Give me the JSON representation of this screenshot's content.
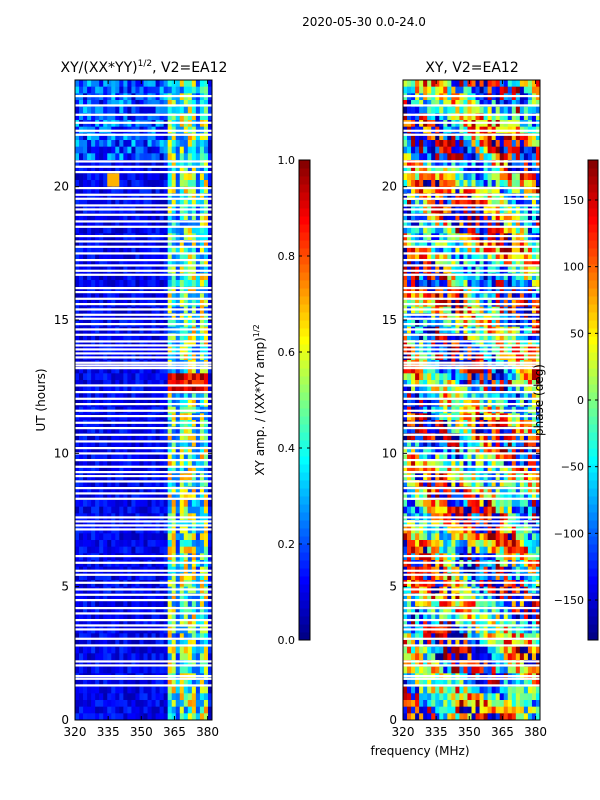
{
  "suptitle": "2020-05-30 0.0-24.0",
  "chart_data": [
    {
      "type": "heatmap",
      "title": "XY/(XX*YY)",
      "title_exp": "1/2",
      "title_suffix": ", V2=EA12",
      "xlabel": "",
      "ylabel": "UT (hours)",
      "xlim": [
        320,
        382
      ],
      "ylim": [
        0,
        24
      ],
      "xticks": [
        "320",
        "335",
        "350",
        "365",
        "380"
      ],
      "xtick_values": [
        320,
        335,
        350,
        365,
        380
      ],
      "yticks": [
        "0",
        "5",
        "10",
        "15",
        "20"
      ],
      "ytick_values": [
        0,
        5,
        10,
        15,
        20
      ],
      "colormap": "jet",
      "pattern": "amplitude",
      "colorbar": {
        "label": "XY amp. / (XX*YY amp)",
        "label_exp": "1/2",
        "min": 0.0,
        "max": 1.0,
        "ticks": [
          "0.0",
          "0.2",
          "0.4",
          "0.6",
          "0.8",
          "1.0"
        ],
        "tick_values": [
          0.0,
          0.2,
          0.4,
          0.6,
          0.8,
          1.0
        ]
      }
    },
    {
      "type": "heatmap",
      "title": "XY, V2=EA12",
      "xlabel": "frequency (MHz)",
      "ylabel": "",
      "xlim": [
        320,
        382
      ],
      "ylim": [
        0,
        24
      ],
      "xticks": [
        "320",
        "335",
        "350",
        "365",
        "380"
      ],
      "xtick_values": [
        320,
        335,
        350,
        365,
        380
      ],
      "yticks": [
        "0",
        "5",
        "10",
        "15",
        "20"
      ],
      "ytick_values": [
        0,
        5,
        10,
        15,
        20
      ],
      "colormap": "jet",
      "pattern": "phase",
      "colorbar": {
        "label": "phase (deg)",
        "min": -180,
        "max": 180,
        "ticks": [
          "−150",
          "−100",
          "−50",
          "0",
          "50",
          "100",
          "150"
        ],
        "tick_values": [
          -150,
          -100,
          -50,
          0,
          50,
          100,
          150
        ]
      }
    }
  ],
  "flagged_ut_hours": [
    1.3,
    1.55,
    1.65,
    2.05,
    2.2,
    2.8,
    3.05,
    3.4,
    3.55,
    3.75,
    4.0,
    4.2,
    4.5,
    4.7,
    4.9,
    5.15,
    5.45,
    5.6,
    5.9,
    6.15,
    7.15,
    7.3,
    7.45,
    7.6,
    8.3,
    8.5,
    8.7,
    8.95,
    9.15,
    9.3,
    9.5,
    9.75,
    10.0,
    10.2,
    10.45,
    10.7,
    10.95,
    11.15,
    11.4,
    11.6,
    11.85,
    12.05,
    12.3,
    12.55,
    13.2,
    13.3,
    13.4,
    13.6,
    13.75,
    13.9,
    14.05,
    14.2,
    14.45,
    14.65,
    14.85,
    15.05,
    15.2,
    15.4,
    15.6,
    15.8,
    16.05,
    16.2,
    16.7,
    16.85,
    17.05,
    17.25,
    17.5,
    17.75,
    17.95,
    18.15,
    18.5,
    18.7,
    18.95,
    19.15,
    19.3,
    19.55,
    19.7,
    19.95,
    20.55,
    20.75,
    20.95,
    21.95,
    22.1,
    22.4,
    22.7,
    23.05,
    23.4
  ]
}
